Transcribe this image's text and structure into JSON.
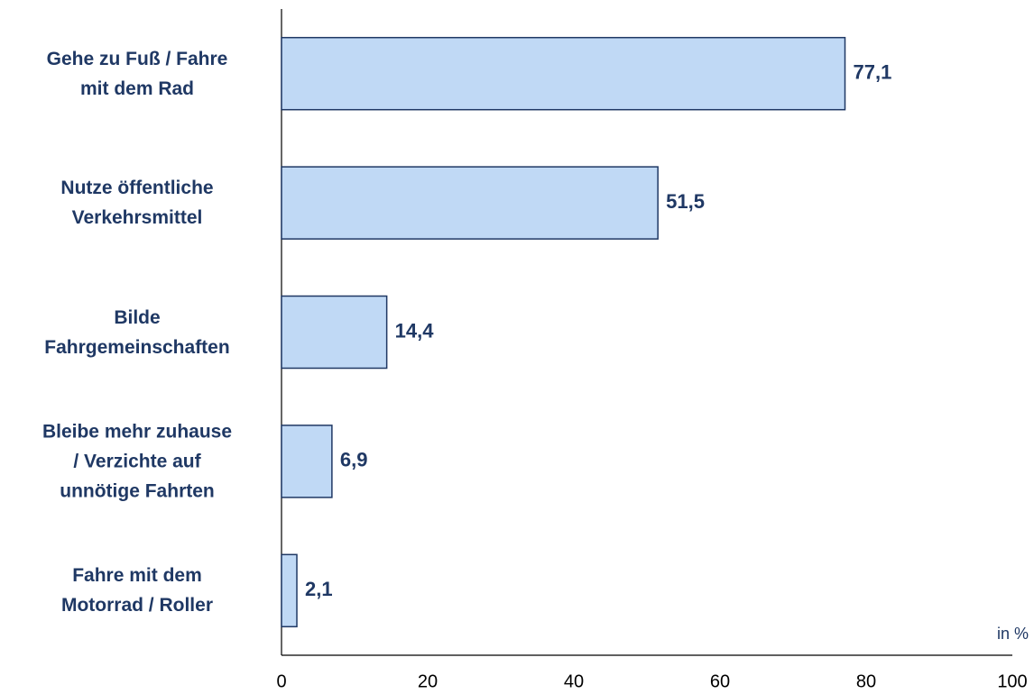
{
  "chart_data": {
    "type": "bar",
    "orientation": "horizontal",
    "categories": [
      "Gehe zu Fuß / Fahre\nmit dem Rad",
      "Nutze öffentliche\nVerkehrsmittel",
      "Bilde\nFahrgemeinschaften",
      "Bleibe mehr zuhause\n/ Verzichte auf\nunnötige Fahrten",
      "Fahre mit dem\nMotorrad / Roller"
    ],
    "values": [
      77.1,
      51.5,
      14.4,
      6.9,
      2.1
    ],
    "value_labels": [
      "77,1",
      "51,5",
      "14,4",
      "6,9",
      "2,1"
    ],
    "color": "#c0d9f5",
    "edge_color": "#1f3864",
    "x_label": "in %",
    "xlim": [
      0,
      100
    ],
    "xticks": [
      0,
      20,
      40,
      60,
      80,
      100
    ],
    "grid": false
  }
}
